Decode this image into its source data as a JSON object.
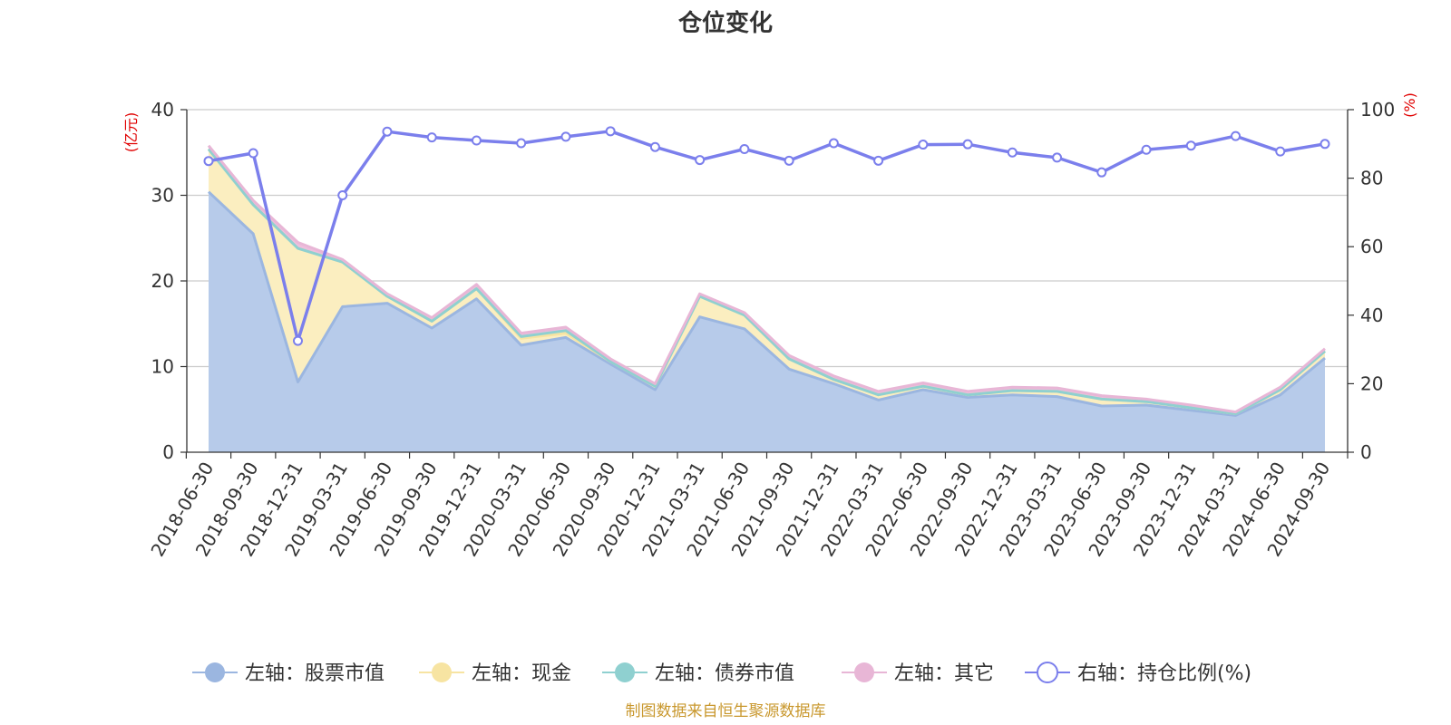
{
  "chart_data": {
    "type": "area",
    "title": "仓位变化",
    "source": "制图数据来自恒生聚源数据库",
    "y_left": {
      "unit": "(亿元)",
      "range": [
        0,
        40
      ],
      "ticks": [
        "0",
        "10",
        "20",
        "30",
        "40"
      ]
    },
    "y_right": {
      "unit": "(%)",
      "range": [
        0,
        100
      ],
      "ticks": [
        "0",
        "20",
        "40",
        "60",
        "80",
        "100"
      ]
    },
    "grid": true,
    "legend_position": "bottom",
    "categories": [
      "2018-06-30",
      "2018-09-30",
      "2018-12-31",
      "2019-03-31",
      "2019-06-30",
      "2019-09-30",
      "2019-12-31",
      "2020-03-31",
      "2020-06-30",
      "2020-09-30",
      "2020-12-31",
      "2021-03-31",
      "2021-06-30",
      "2021-09-30",
      "2021-12-31",
      "2022-03-31",
      "2022-06-30",
      "2022-09-30",
      "2022-12-31",
      "2023-03-31",
      "2023-06-30",
      "2023-09-30",
      "2023-12-31",
      "2024-03-31",
      "2024-06-30",
      "2024-09-30"
    ],
    "series": [
      {
        "name": "左轴：股票市值",
        "axis": "left",
        "color": "#9bb6e0",
        "fill": "#b7cbea",
        "values": [
          30.4,
          25.5,
          8.2,
          17.0,
          17.4,
          14.5,
          17.9,
          12.5,
          13.4,
          10.3,
          7.3,
          15.8,
          14.4,
          9.7,
          8.0,
          6.1,
          7.3,
          6.4,
          6.7,
          6.5,
          5.4,
          5.5,
          4.9,
          4.3,
          6.7,
          11.0
        ]
      },
      {
        "name": "左轴：现金",
        "axis": "left",
        "color": "#f7e4a2",
        "fill": "#fbeec0",
        "values": [
          5.0,
          3.4,
          15.6,
          5.2,
          0.8,
          0.8,
          1.2,
          0.8,
          0.5,
          0.3,
          0.4,
          2.4,
          1.6,
          1.2,
          0.5,
          0.6,
          0.4,
          0.3,
          0.5,
          0.6,
          0.8,
          0.4,
          0.3,
          0.2,
          0.6,
          0.8
        ]
      },
      {
        "name": "左轴：债券市值",
        "axis": "left",
        "color": "#8fd0d0",
        "fill": "#bfe3e3",
        "values": [
          0,
          0,
          0,
          0,
          0,
          0,
          0,
          0.2,
          0.3,
          0,
          0,
          0,
          0,
          0,
          0,
          0,
          0,
          0,
          0,
          0,
          0,
          0,
          0,
          0,
          0,
          0
        ]
      },
      {
        "name": "左轴：其它",
        "axis": "left",
        "color": "#e8b6d6",
        "fill": "#eebedd",
        "values": [
          0.4,
          0.5,
          0.7,
          0.3,
          0.3,
          0.4,
          0.5,
          0.4,
          0.4,
          0.3,
          0.3,
          0.3,
          0.3,
          0.4,
          0.4,
          0.4,
          0.4,
          0.4,
          0.4,
          0.4,
          0.4,
          0.3,
          0.3,
          0.2,
          0.3,
          0.3
        ]
      },
      {
        "name": "右轴：持仓比例(%)",
        "axis": "right",
        "color": "#7b7fec",
        "values": [
          85.0,
          87.3,
          32.5,
          75.0,
          93.6,
          91.9,
          91.0,
          90.2,
          92.1,
          93.7,
          89.1,
          85.3,
          88.5,
          85.1,
          90.2,
          85.1,
          89.8,
          89.9,
          87.5,
          86.0,
          81.7,
          88.3,
          89.5,
          92.3,
          87.8,
          90.0
        ]
      }
    ]
  }
}
